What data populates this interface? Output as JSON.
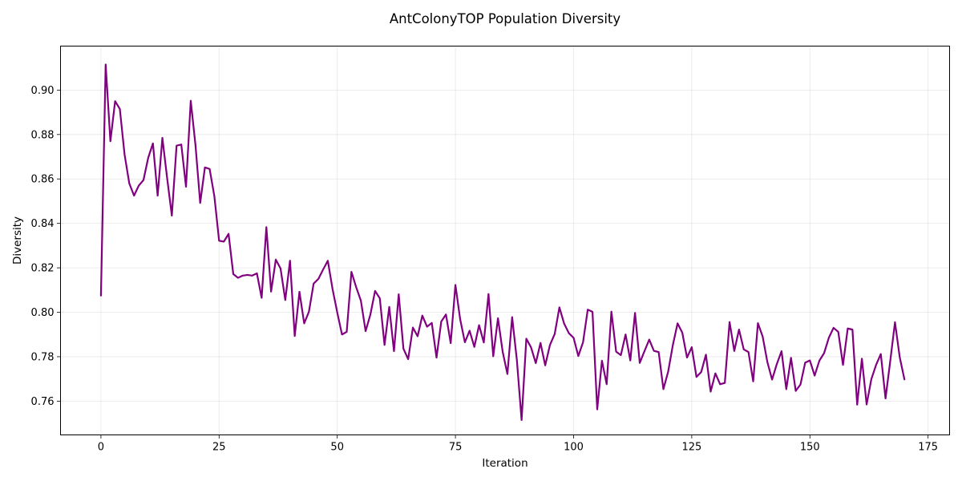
{
  "chart_data": {
    "type": "line",
    "title": "AntColonyTOP Population Diversity",
    "xlabel": "Iteration",
    "ylabel": "Diversity",
    "xlim": [
      -8.55,
      179.55
    ],
    "ylim": [
      0.7448,
      0.9198
    ],
    "xticks": [
      0,
      25,
      50,
      75,
      100,
      125,
      150,
      175
    ],
    "yticks": [
      0.76,
      0.78,
      0.8,
      0.82,
      0.84,
      0.86,
      0.88,
      0.9
    ],
    "ytick_labels": [
      "0.76",
      "0.78",
      "0.80",
      "0.82",
      "0.84",
      "0.86",
      "0.88",
      "0.90"
    ],
    "grid": true,
    "line_color": "#800080",
    "series": [
      {
        "values": [
          0.8075,
          0.9115,
          0.877,
          0.895,
          0.8915,
          0.871,
          0.858,
          0.8525,
          0.857,
          0.8595,
          0.8695,
          0.876,
          0.8525,
          0.8785,
          0.8605,
          0.8435,
          0.875,
          0.8755,
          0.8565,
          0.8952,
          0.8753,
          0.8492,
          0.8652,
          0.8645,
          0.8522,
          0.8322,
          0.8318,
          0.8353,
          0.8172,
          0.8155,
          0.8165,
          0.8168,
          0.8165,
          0.8175,
          0.8065,
          0.8383,
          0.8093,
          0.8237,
          0.8197,
          0.8055,
          0.8232,
          0.7893,
          0.8092,
          0.795,
          0.8002,
          0.8129,
          0.815,
          0.8192,
          0.8232,
          0.8105,
          0.7999,
          0.79,
          0.7912,
          0.8182,
          0.8113,
          0.8052,
          0.7915,
          0.7989,
          0.8096,
          0.8063,
          0.7853,
          0.8024,
          0.7825,
          0.8081,
          0.7836,
          0.7789,
          0.7931,
          0.7892,
          0.7985,
          0.7935,
          0.7952,
          0.7796,
          0.7958,
          0.799,
          0.7861,
          0.8123,
          0.7969,
          0.7865,
          0.7917,
          0.7844,
          0.7942,
          0.7864,
          0.8082,
          0.7802,
          0.7973,
          0.7822,
          0.7722,
          0.7978,
          0.7785,
          0.7515,
          0.7881,
          0.7842,
          0.7771,
          0.7862,
          0.7761,
          0.7853,
          0.7902,
          0.8022,
          0.7949,
          0.7906,
          0.7885,
          0.7803,
          0.7865,
          0.8012,
          0.8002,
          0.7563,
          0.7782,
          0.7676,
          0.8003,
          0.7823,
          0.7807,
          0.79,
          0.7783,
          0.7997,
          0.7772,
          0.7825,
          0.7877,
          0.7826,
          0.7821,
          0.7654,
          0.7732,
          0.7852,
          0.795,
          0.7908,
          0.7796,
          0.7843,
          0.7709,
          0.7731,
          0.7809,
          0.7643,
          0.7725,
          0.7676,
          0.7682,
          0.7956,
          0.7826,
          0.7922,
          0.7833,
          0.7821,
          0.7689,
          0.7951,
          0.7891,
          0.7776,
          0.7697,
          0.7767,
          0.7825,
          0.7654,
          0.7795,
          0.7646,
          0.7675,
          0.7773,
          0.7783,
          0.7715,
          0.7782,
          0.7816,
          0.7885,
          0.793,
          0.7912,
          0.7763,
          0.7927,
          0.7922,
          0.7584,
          0.7791,
          0.7585,
          0.7699,
          0.7763,
          0.7812,
          0.7612,
          0.7781,
          0.7955,
          0.7798,
          0.7698
        ]
      }
    ]
  }
}
